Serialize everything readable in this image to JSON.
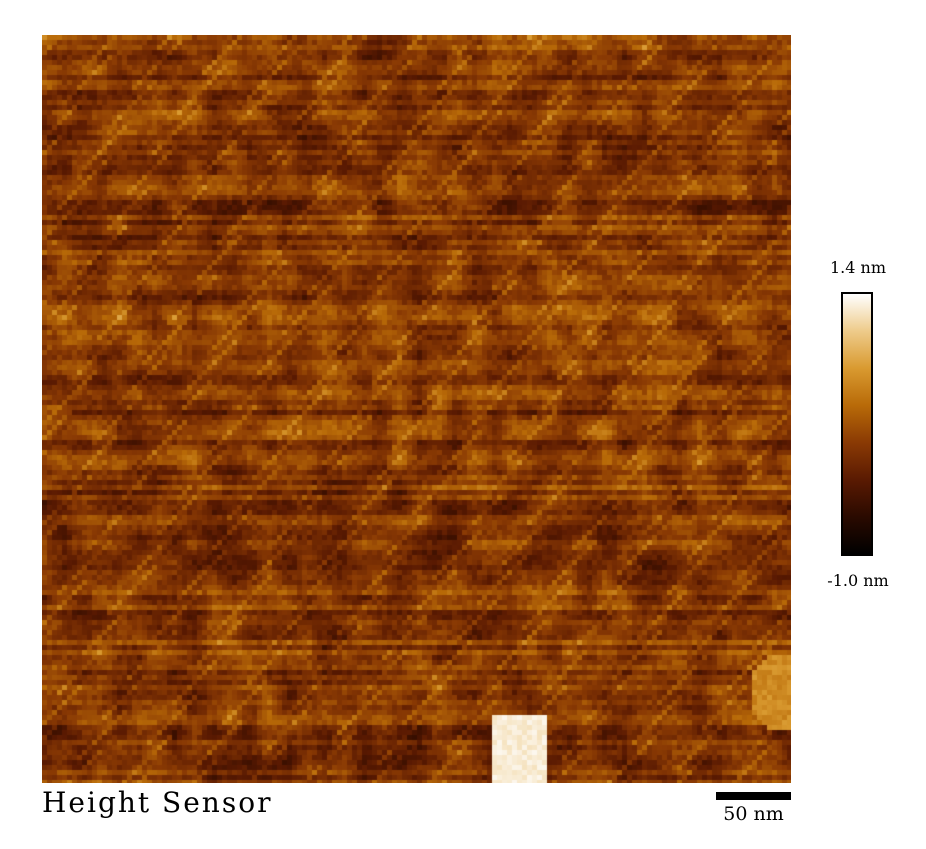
{
  "image": {
    "caption": "Height Sensor",
    "scale_bar": "50 nm",
    "colorbar": {
      "max_label": "1.4 nm",
      "min_label": "-1.0 nm",
      "stops": [
        "#000000",
        "#2a0a00",
        "#5a1a02",
        "#8a3a04",
        "#b86a08",
        "#d99a30",
        "#eecb8a",
        "#ffffff"
      ]
    },
    "features": {
      "bright_particle": "near bottom center",
      "bright_edge_spot": "bottom right",
      "texture": "horizontal scan streaks"
    }
  }
}
